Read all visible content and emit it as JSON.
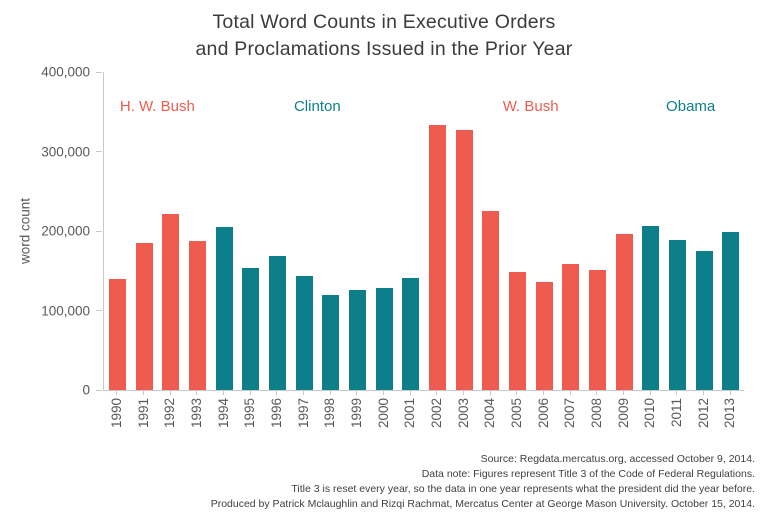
{
  "title": {
    "line1": "Total Word Counts in Executive Orders",
    "line2": "and Proclamations Issued in the Prior Year"
  },
  "colors": {
    "republican": "#ef5b4e",
    "democrat": "#0d7f8b",
    "axis": "#c7c8ca",
    "tick_text": "#58595b",
    "title_text": "#3c3c3e"
  },
  "chart_data": {
    "type": "bar",
    "title": "Total Word Counts in Executive Orders and Proclamations Issued in the Prior Year",
    "xlabel": "",
    "ylabel": "word count",
    "ylim": [
      0,
      400000
    ],
    "yticks": [
      0,
      100000,
      200000,
      300000,
      400000
    ],
    "ytick_labels": [
      "0",
      "100,000",
      "200,000",
      "300,000",
      "400,000"
    ],
    "grid": false,
    "legend_position": "none",
    "categories": [
      1990,
      1991,
      1992,
      1993,
      1994,
      1995,
      1996,
      1997,
      1998,
      1999,
      2000,
      2001,
      2002,
      2003,
      2004,
      2005,
      2006,
      2007,
      2008,
      2009,
      2010,
      2011,
      2012,
      2013
    ],
    "values": [
      140000,
      185000,
      221000,
      187000,
      205000,
      154000,
      169000,
      143000,
      119000,
      126000,
      128000,
      141000,
      333000,
      327000,
      225000,
      148000,
      136000,
      158000,
      151000,
      196000,
      206000,
      189000,
      175000,
      199000
    ],
    "eras": [
      {
        "label": "H. W. Bush",
        "party": "republican",
        "years": [
          1990,
          1993
        ]
      },
      {
        "label": "Clinton",
        "party": "democrat",
        "years": [
          1994,
          2001
        ]
      },
      {
        "label": "W. Bush",
        "party": "republican",
        "years": [
          2002,
          2009
        ]
      },
      {
        "label": "Obama",
        "party": "democrat",
        "years": [
          2010,
          2013
        ]
      }
    ]
  },
  "footer": {
    "lines": [
      "Source: Regdata.mercatus.org, accessed October 9, 2014.",
      "Data note: Figures represent Title 3 of the Code of Federal Regulations.",
      "Title 3 is reset every year, so the data in one year represents what the president did the year before.",
      "Produced by Patrick Mclaughlin and Rizqi Rachmat, Mercatus Center at George Mason University. October 15, 2014."
    ]
  }
}
